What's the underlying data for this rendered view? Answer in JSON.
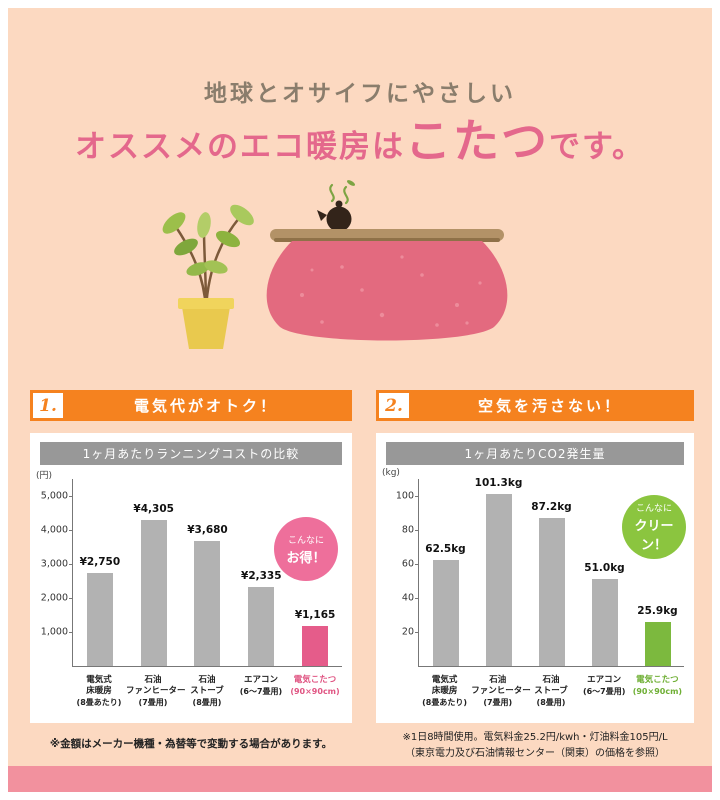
{
  "page": {
    "bg_color": "#fcd9c1",
    "accent_orange": "#f5821f",
    "accent_pink": "#e4688c",
    "accent_green": "#8bc53f",
    "bottom_strip_color": "#f2919e"
  },
  "title": {
    "line1": "地球とオサイフにやさしい",
    "line2_pre": "オススメのエコ暖房は",
    "line2_highlight": "こたつ",
    "line2_post": "です。"
  },
  "sections": [
    {
      "number": "1.",
      "label": "電気代がオトク！"
    },
    {
      "number": "2.",
      "label": "空気を汚さない！"
    }
  ],
  "chart_data": [
    {
      "type": "bar",
      "title": "1ヶ月あたりランニングコストの比較",
      "unit": "(円)",
      "ylim": [
        0,
        5500
      ],
      "yticks": [
        5000,
        4000,
        3000,
        2000,
        1000
      ],
      "ytick_labels": [
        "5,000",
        "4,000",
        "3,000",
        "2,000",
        "1,000"
      ],
      "categories": [
        {
          "lines": [
            "電気式",
            "床暖房"
          ],
          "note": "(8畳あたり)"
        },
        {
          "lines": [
            "石油",
            "ファンヒーター"
          ],
          "note": "(7畳用)"
        },
        {
          "lines": [
            "石油",
            "ストーブ"
          ],
          "note": "(8畳用)"
        },
        {
          "lines": [
            "エアコン"
          ],
          "note": "(6〜7畳用)"
        },
        {
          "lines": [
            "電気こたつ"
          ],
          "note": "(90×90cm)"
        }
      ],
      "values": [
        2750,
        4305,
        3680,
        2335,
        1165
      ],
      "value_labels": [
        "¥2,750",
        "¥4,305",
        "¥3,680",
        "¥2,335",
        "¥1,165"
      ],
      "bar_color": "#b2b2b2",
      "highlight_index": 4,
      "highlight_color": "#e55c8a",
      "highlight_label_color": "#e05583",
      "badge": {
        "line1": "こんなに",
        "line2": "お得！",
        "color": "#ee6f9b"
      },
      "grid": false,
      "legend": false
    },
    {
      "type": "bar",
      "title": "1ヶ月あたりCO2発生量",
      "unit": "(kg)",
      "ylim": [
        0,
        110
      ],
      "yticks": [
        100,
        80,
        60,
        40,
        20
      ],
      "ytick_labels": [
        "100",
        "80",
        "60",
        "40",
        "20"
      ],
      "categories": [
        {
          "lines": [
            "電気式",
            "床暖房"
          ],
          "note": "(8畳あたり)"
        },
        {
          "lines": [
            "石油",
            "ファンヒーター"
          ],
          "note": "(7畳用)"
        },
        {
          "lines": [
            "石油",
            "ストーブ"
          ],
          "note": "(8畳用)"
        },
        {
          "lines": [
            "エアコン"
          ],
          "note": "(6〜7畳用)"
        },
        {
          "lines": [
            "電気こたつ"
          ],
          "note": "(90×90cm)"
        }
      ],
      "values": [
        62.5,
        101.3,
        87.2,
        51.0,
        25.9
      ],
      "value_labels": [
        "62.5kg",
        "101.3kg",
        "87.2kg",
        "51.0kg",
        "25.9kg"
      ],
      "bar_color": "#b2b2b2",
      "highlight_index": 4,
      "highlight_color": "#7cb93e",
      "highlight_label_color": "#6faf35",
      "badge": {
        "line1": "こんなに",
        "line2": "クリーン！",
        "color": "#8bc53f"
      },
      "grid": false,
      "legend": false
    }
  ],
  "footnotes": {
    "left": "※金額はメーカー機種・為替等で変動する場合があります。",
    "right1": "※1日8時間使用。電気料金25.2円/kwh・灯油料金105円/L",
    "right2": "（東京電力及び石油情報センター（関東）の価格を参照）"
  }
}
